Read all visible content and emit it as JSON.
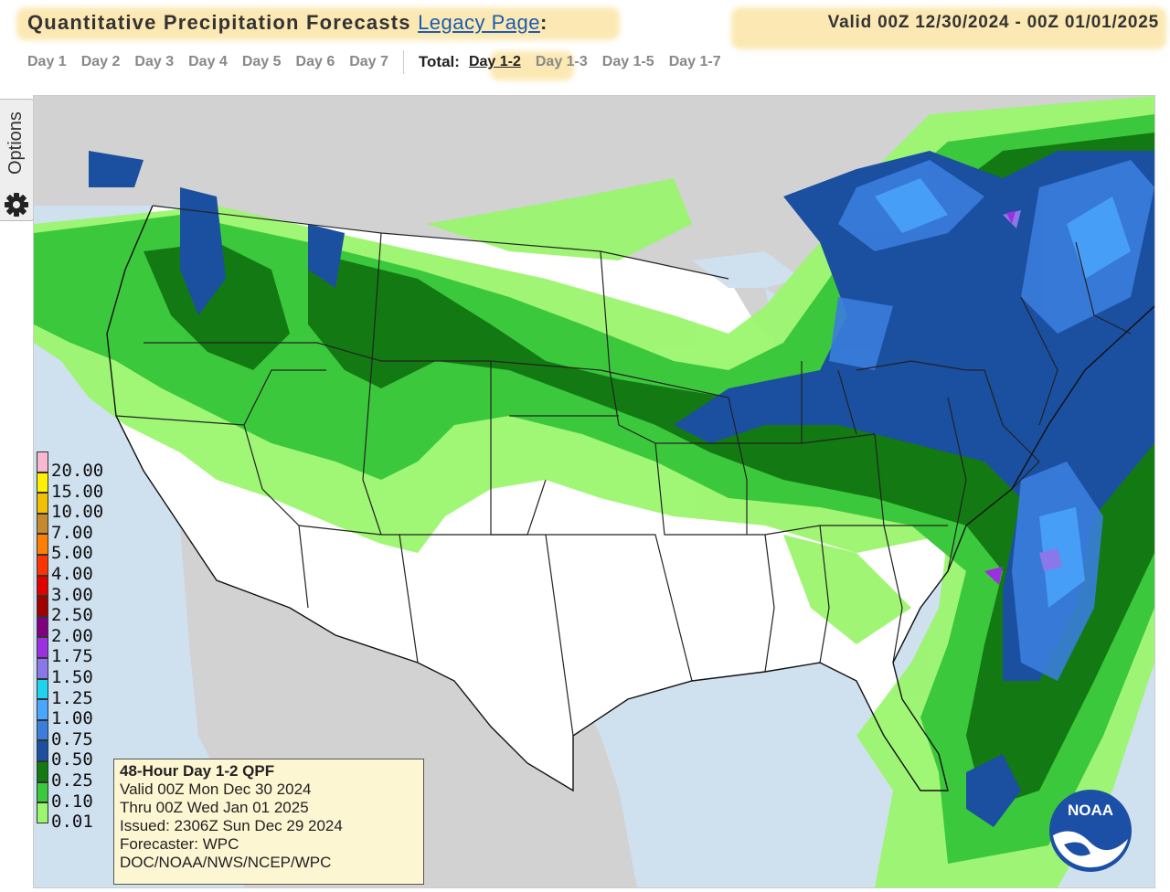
{
  "header": {
    "title": "Quantitative Precipitation Forecasts",
    "legacy_link": "Legacy Page",
    "colon": ":",
    "valid": "Valid 00Z 12/30/2024 - 00Z 01/01/2025"
  },
  "nav": {
    "days": [
      "Day 1",
      "Day 2",
      "Day 3",
      "Day 4",
      "Day 5",
      "Day 6",
      "Day 7"
    ],
    "total_label": "Total:",
    "totals": [
      "Day 1-2",
      "Day 1-3",
      "Day 1-5",
      "Day 1-7"
    ],
    "active_total": "Day 1-2"
  },
  "options": {
    "label": "Options",
    "icon": "gear-icon"
  },
  "legend": {
    "levels": [
      "20.00",
      "15.00",
      "10.00",
      "7.00",
      "5.00",
      "4.00",
      "3.00",
      "2.50",
      "2.00",
      "1.75",
      "1.50",
      "1.25",
      "1.00",
      "0.75",
      "0.50",
      "0.25",
      "0.10",
      "0.01"
    ],
    "colors": [
      "#f7b8d2",
      "#fff200",
      "#f2c000",
      "#c58a2c",
      "#ff7f00",
      "#ff3300",
      "#e10000",
      "#a00000",
      "#800080",
      "#9b30e0",
      "#8a78e8",
      "#20d4f0",
      "#4aa7ff",
      "#3b7ddd",
      "#1b4fa0",
      "#137a13",
      "#3cc83c",
      "#9bf56e"
    ]
  },
  "info": {
    "line1": "48-Hour Day 1-2 QPF",
    "line2": "Valid 00Z Mon Dec 30 2024",
    "line3": "Thru 00Z Wed Jan 01 2025",
    "line4": "Issued: 2306Z Sun Dec 29 2024",
    "line5": "Forecaster: WPC",
    "line6": "DOC/NOAA/NWS/NCEP/WPC"
  },
  "logo": {
    "text": "NOAA"
  }
}
